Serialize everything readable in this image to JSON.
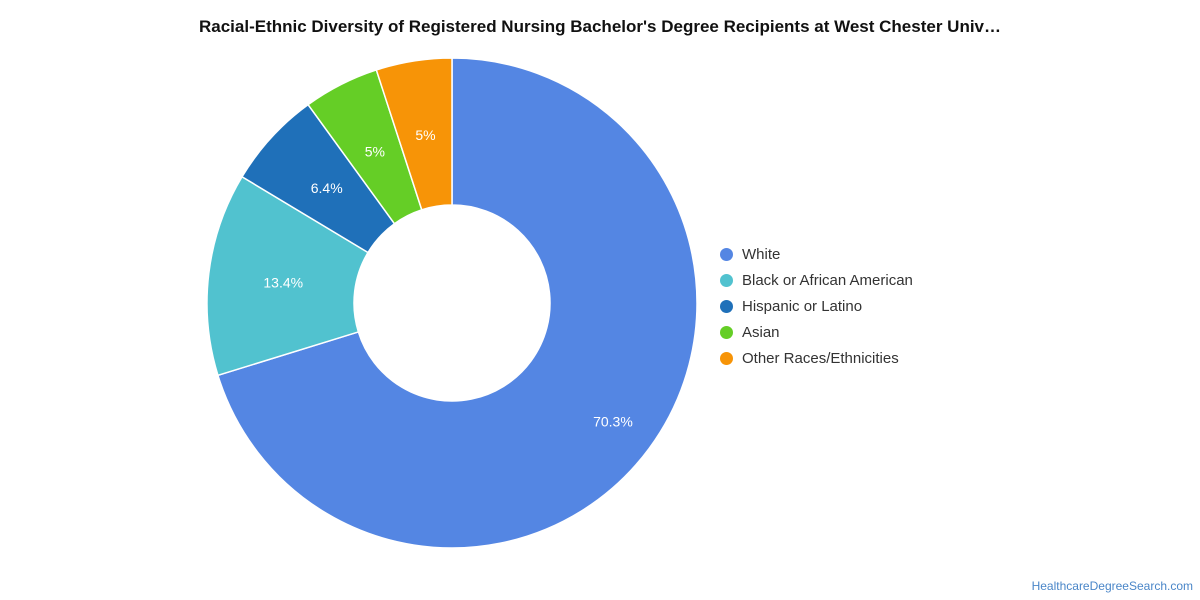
{
  "chart_data": {
    "type": "pie",
    "title": "Racial-Ethnic Diversity of Registered Nursing Bachelor's Degree Recipients at West Chester Univ…",
    "donut": true,
    "legend_position": "right",
    "slices": [
      {
        "label": "White",
        "value": 70.3,
        "display": "70.3%",
        "color": "#5486e3"
      },
      {
        "label": "Black or African American",
        "value": 13.4,
        "display": "13.4%",
        "color": "#51c2cf"
      },
      {
        "label": "Hispanic or Latino",
        "value": 6.4,
        "display": "6.4%",
        "color": "#1f70b9"
      },
      {
        "label": "Asian",
        "value": 5,
        "display": "5%",
        "color": "#65ce26"
      },
      {
        "label": "Other Races/Ethnicities",
        "value": 5,
        "display": "5%",
        "color": "#f79407"
      }
    ]
  },
  "footer": {
    "source": "HealthcareDegreeSearch.com"
  }
}
